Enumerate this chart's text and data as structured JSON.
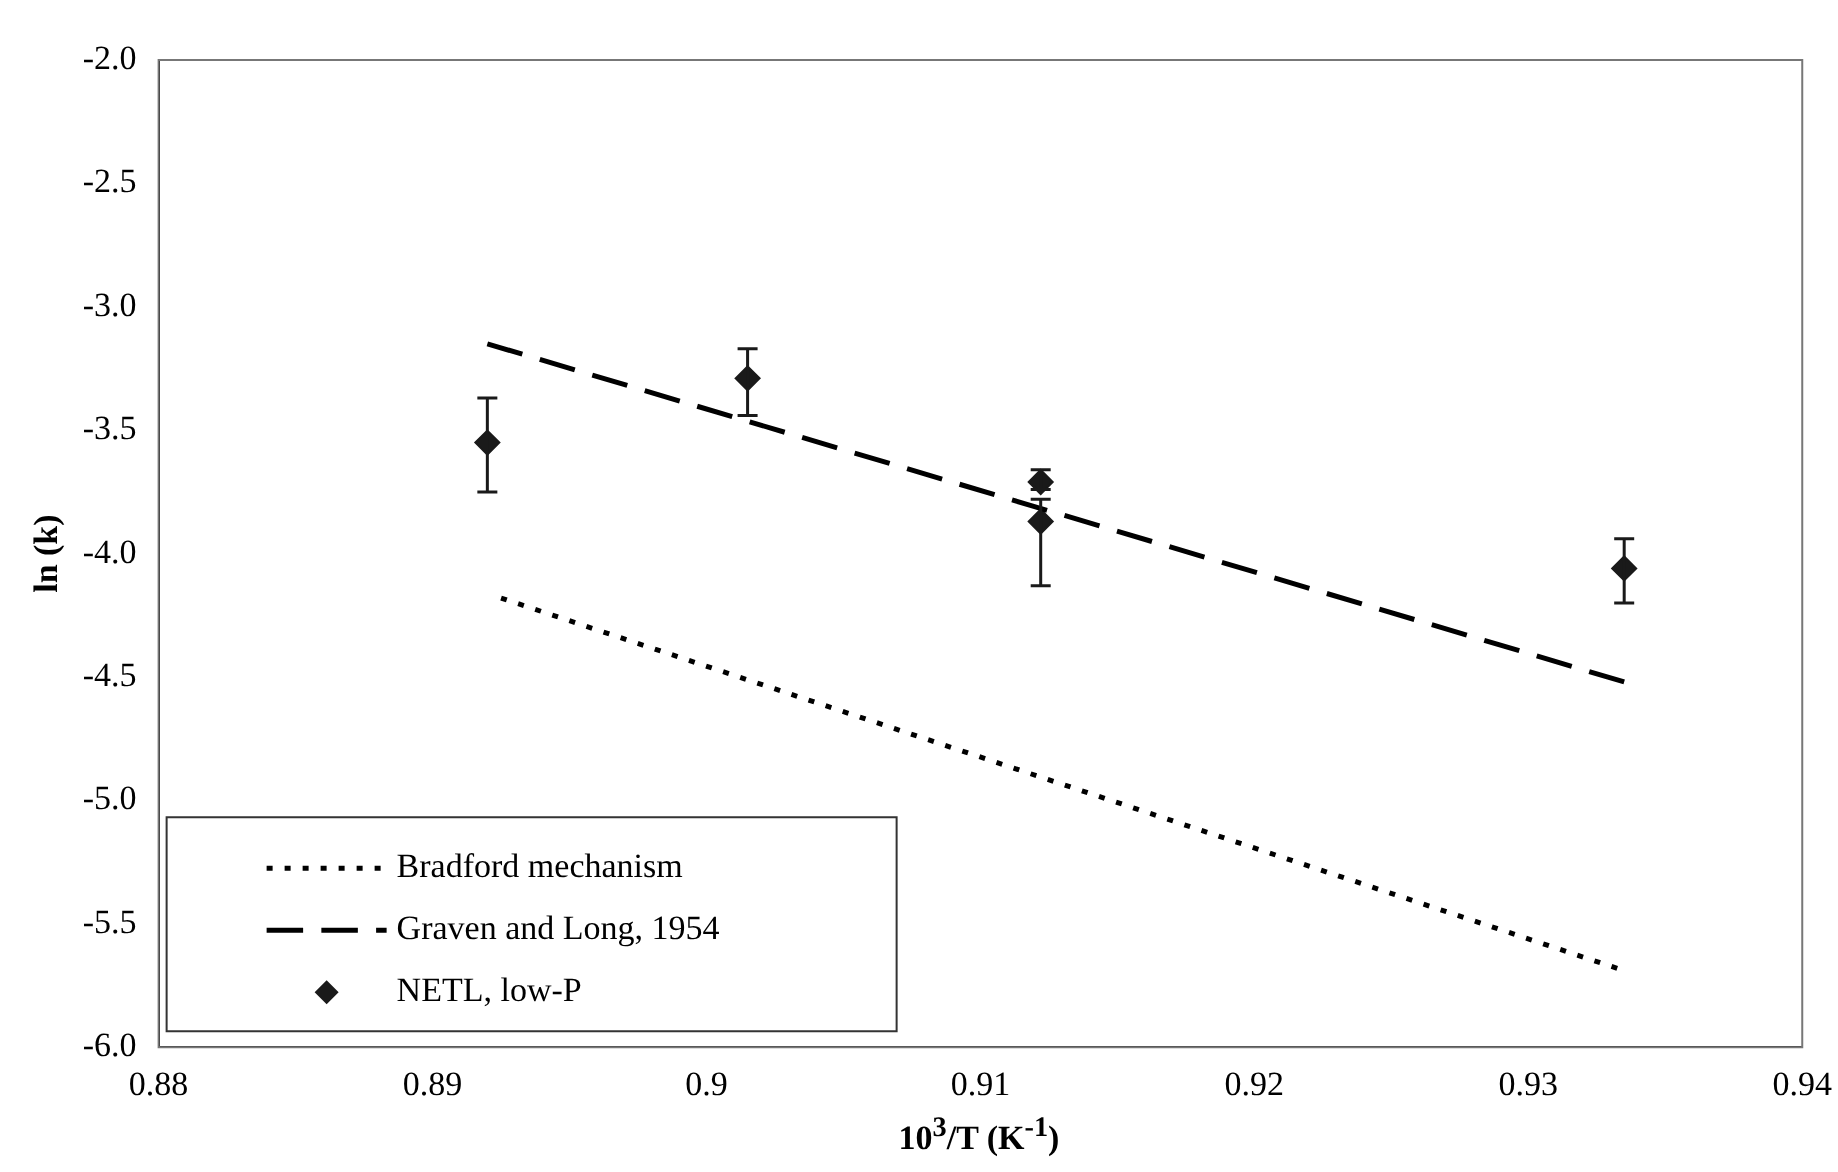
{
  "chart_data": {
    "type": "scatter",
    "xlabel": "10$^{3}$/T (K$^{-1}$)",
    "ylabel": "ln (k)",
    "series": [
      {
        "name": "Bradford mechanism",
        "type": "line",
        "color": "#000000",
        "line_style": "dotted",
        "marker": "none",
        "x": [
          0.8925,
          0.9335
        ],
        "values": [
          -4.18,
          -5.69
        ]
      },
      {
        "name": "Graven and Long, 1954",
        "type": "line",
        "color": "#000000",
        "line_style": "dashed",
        "marker": "none",
        "x": [
          0.892,
          0.9335
        ],
        "values": [
          -3.15,
          -4.52
        ]
      },
      {
        "name": "NETL, low-P",
        "type": "scatter",
        "color": "#1a1a1a",
        "marker": "diamond",
        "x": [
          0.892,
          0.9015,
          0.9122,
          0.9122,
          0.9335
        ],
        "values": [
          -3.55,
          -3.29,
          -3.71,
          -3.87,
          -4.06
        ],
        "errors": [
          [
            -3.75,
            -3.37
          ],
          [
            -3.44,
            -3.17
          ],
          [
            -3.74,
            -3.66
          ],
          [
            -4.13,
            -3.78
          ],
          [
            -4.2,
            -3.94
          ]
        ]
      }
    ],
    "xlim": [
      0.88,
      0.94
    ],
    "xticks": [
      0.88,
      0.89,
      0.9,
      0.91,
      0.92,
      0.93,
      0.94
    ],
    "ylim": [
      -6,
      -2
    ],
    "yticks": [
      {
        "value": -6,
        "label": "-6.0"
      },
      {
        "value": -5.5,
        "label": "-5.5"
      },
      {
        "value": -5,
        "label": "-5.0"
      },
      {
        "value": -4.5,
        "label": "-4.5"
      },
      {
        "value": -4,
        "label": "-4.0"
      },
      {
        "value": -3.5,
        "label": "-3.5"
      },
      {
        "value": -3,
        "label": "-3.0"
      },
      {
        "value": -2.5,
        "label": "-2.5"
      },
      {
        "value": -2,
        "label": "-2.0"
      }
    ],
    "grid": false,
    "legend": "bottom left"
  }
}
